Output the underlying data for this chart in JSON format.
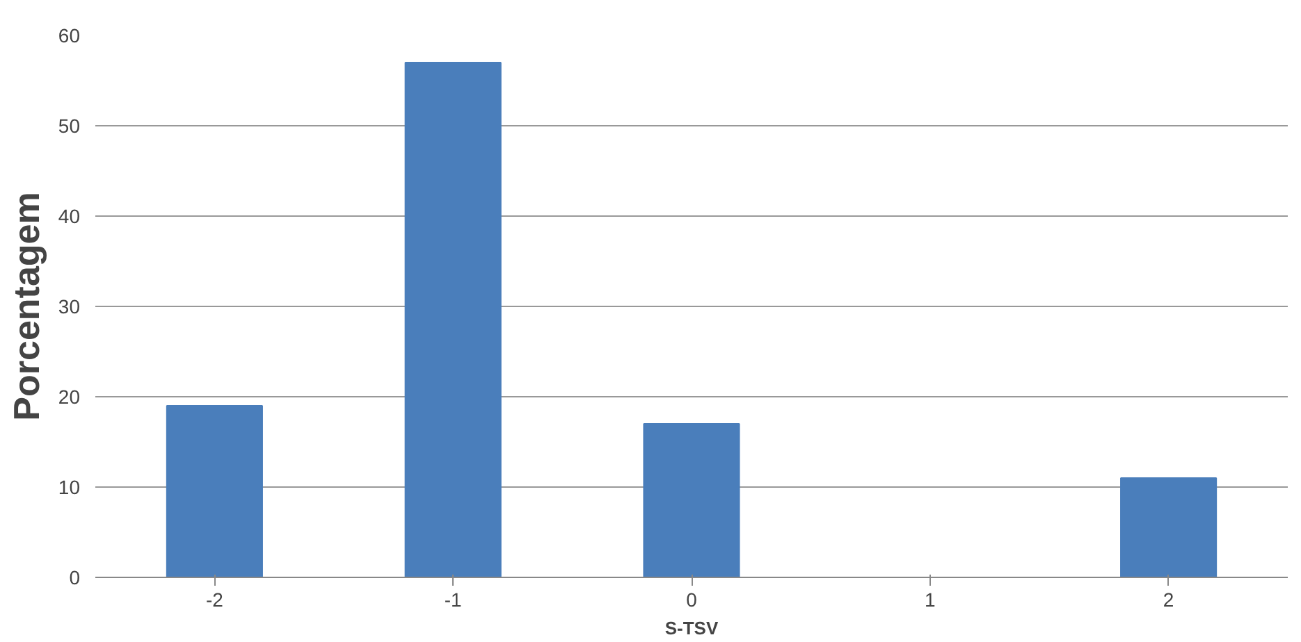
{
  "chart_data": {
    "type": "bar",
    "xlabel": "S-TSV",
    "ylabel": "Porcentagem",
    "categories": [
      "-2",
      "-1",
      "0",
      "1",
      "2"
    ],
    "values": [
      19,
      57,
      17,
      0,
      11
    ],
    "color": "#4a7ebb",
    "ylim": [
      0,
      60
    ],
    "yticks": [
      0,
      10,
      20,
      30,
      40,
      50,
      60
    ],
    "grid": "y"
  }
}
